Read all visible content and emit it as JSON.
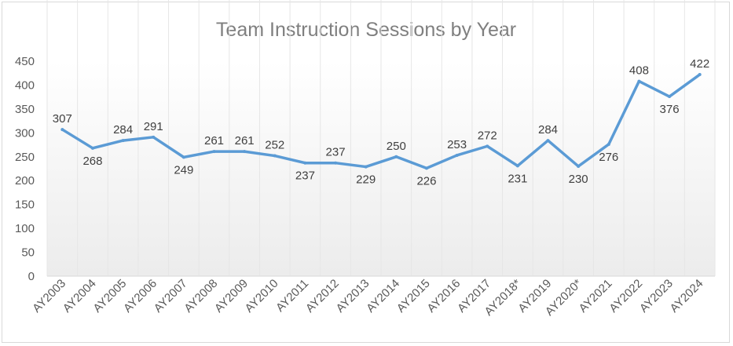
{
  "chart_data": {
    "type": "line",
    "title": "Team Instruction Sessions by Year",
    "xlabel": "",
    "ylabel": "",
    "categories": [
      "AY2003",
      "AY2004",
      "AY2005",
      "AY2006",
      "AY2007",
      "AY2008",
      "AY2009",
      "AY2010",
      "AY2011",
      "AY2012",
      "AY2013",
      "AY2014",
      "AY2015",
      "AY2016",
      "AY2017",
      "AY2018*",
      "AY2019",
      "AY2020*",
      "AY2021",
      "AY2022",
      "AY2023",
      "AY2024"
    ],
    "series": [
      {
        "values": [
          307,
          268,
          284,
          291,
          249,
          261,
          261,
          252,
          237,
          237,
          229,
          250,
          226,
          253,
          272,
          231,
          284,
          230,
          276,
          408,
          376,
          422
        ]
      }
    ],
    "ylim": [
      0,
      450
    ],
    "yticks": [
      0,
      50,
      100,
      150,
      200,
      250,
      300,
      350,
      400,
      450
    ],
    "grid": "vertical",
    "legend": "none",
    "data_labels": true,
    "line_color": "#5b9bd5"
  }
}
